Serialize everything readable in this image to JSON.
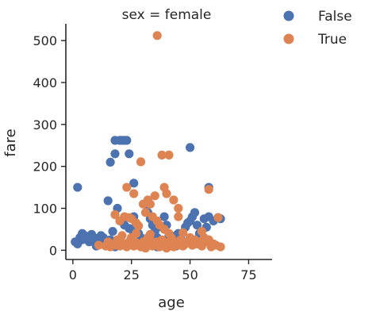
{
  "chart_data": {
    "type": "scatter",
    "title": "sex = female",
    "xlabel": "age",
    "ylabel": "fare",
    "xlim": [
      -3,
      85
    ],
    "ylim": [
      -22,
      540
    ],
    "xticks": [
      "0",
      "25",
      "50",
      "75"
    ],
    "xtick_values": [
      0,
      25,
      50,
      75
    ],
    "yticks": [
      "0",
      "100",
      "200",
      "300",
      "400",
      "500"
    ],
    "ytick_values": [
      0,
      100,
      200,
      300,
      400,
      500
    ],
    "grid": false,
    "legend_position": "top-right",
    "series": [
      {
        "name": "False",
        "color": "#4c72b0",
        "points": [
          [
            2,
            150
          ],
          [
            1,
            20
          ],
          [
            2,
            15
          ],
          [
            3,
            30
          ],
          [
            4,
            40
          ],
          [
            4,
            25
          ],
          [
            5,
            35
          ],
          [
            6,
            28
          ],
          [
            7,
            20
          ],
          [
            8,
            38
          ],
          [
            9,
            30
          ],
          [
            10,
            25
          ],
          [
            11,
            20
          ],
          [
            12,
            35
          ],
          [
            13,
            30
          ],
          [
            14,
            20
          ],
          [
            15,
            118
          ],
          [
            16,
            25
          ],
          [
            16,
            210
          ],
          [
            17,
            45
          ],
          [
            18,
            230
          ],
          [
            18,
            262
          ],
          [
            19,
            100
          ],
          [
            20,
            262
          ],
          [
            21,
            262
          ],
          [
            22,
            262
          ],
          [
            23,
            262
          ],
          [
            24,
            230
          ],
          [
            24,
            52
          ],
          [
            25,
            30
          ],
          [
            26,
            160
          ],
          [
            26,
            80
          ],
          [
            27,
            60
          ],
          [
            28,
            40
          ],
          [
            29,
            30
          ],
          [
            30,
            25
          ],
          [
            31,
            110
          ],
          [
            32,
            90
          ],
          [
            33,
            75
          ],
          [
            34,
            60
          ],
          [
            35,
            45
          ],
          [
            36,
            30
          ],
          [
            37,
            20
          ],
          [
            38,
            55
          ],
          [
            39,
            80
          ],
          [
            40,
            60
          ],
          [
            41,
            35
          ],
          [
            42,
            25
          ],
          [
            43,
            15
          ],
          [
            44,
            10
          ],
          [
            45,
            40
          ],
          [
            46,
            30
          ],
          [
            47,
            20
          ],
          [
            48,
            55
          ],
          [
            49,
            65
          ],
          [
            50,
            245
          ],
          [
            50,
            70
          ],
          [
            51,
            80
          ],
          [
            52,
            90
          ],
          [
            53,
            60
          ],
          [
            54,
            40
          ],
          [
            55,
            30
          ],
          [
            56,
            75
          ],
          [
            57,
            55
          ],
          [
            58,
            150
          ],
          [
            58,
            80
          ],
          [
            60,
            70
          ],
          [
            62,
            78
          ],
          [
            63,
            75
          ],
          [
            30,
            10
          ],
          [
            20,
            12
          ],
          [
            10,
            10
          ],
          [
            40,
            12
          ],
          [
            22,
            60
          ],
          [
            26,
            40
          ],
          [
            33,
            15
          ],
          [
            44,
            35
          ],
          [
            18,
            8
          ],
          [
            24,
            14
          ],
          [
            36,
            8
          ]
        ]
      },
      {
        "name": "True",
        "color": "#dd8452",
        "points": [
          [
            36,
            512
          ],
          [
            29,
            211
          ],
          [
            23,
            150
          ],
          [
            26,
            135
          ],
          [
            32,
            120
          ],
          [
            33,
            110
          ],
          [
            35,
            130
          ],
          [
            38,
            227
          ],
          [
            41,
            227
          ],
          [
            39,
            150
          ],
          [
            40,
            135
          ],
          [
            43,
            120
          ],
          [
            45,
            100
          ],
          [
            58,
            145
          ],
          [
            18,
            85
          ],
          [
            20,
            70
          ],
          [
            22,
            80
          ],
          [
            24,
            78
          ],
          [
            25,
            75
          ],
          [
            27,
            65
          ],
          [
            28,
            58
          ],
          [
            30,
            110
          ],
          [
            31,
            90
          ],
          [
            34,
            80
          ],
          [
            36,
            70
          ],
          [
            37,
            60
          ],
          [
            39,
            50
          ],
          [
            41,
            40
          ],
          [
            42,
            30
          ],
          [
            44,
            20
          ],
          [
            46,
            25
          ],
          [
            48,
            15
          ],
          [
            50,
            30
          ],
          [
            52,
            25
          ],
          [
            54,
            20
          ],
          [
            56,
            30
          ],
          [
            58,
            25
          ],
          [
            60,
            15
          ],
          [
            62,
            78
          ],
          [
            63,
            8
          ],
          [
            14,
            10
          ],
          [
            15,
            20
          ],
          [
            16,
            8
          ],
          [
            17,
            15
          ],
          [
            18,
            12
          ],
          [
            19,
            25
          ],
          [
            20,
            10
          ],
          [
            21,
            18
          ],
          [
            22,
            12
          ],
          [
            23,
            8
          ],
          [
            24,
            20
          ],
          [
            25,
            30
          ],
          [
            26,
            10
          ],
          [
            27,
            18
          ],
          [
            28,
            12
          ],
          [
            29,
            8
          ],
          [
            30,
            20
          ],
          [
            31,
            15
          ],
          [
            32,
            30
          ],
          [
            33,
            25
          ],
          [
            34,
            10
          ],
          [
            35,
            15
          ],
          [
            36,
            20
          ],
          [
            37,
            8
          ],
          [
            38,
            25
          ],
          [
            39,
            12
          ],
          [
            40,
            18
          ],
          [
            41,
            10
          ],
          [
            42,
            15
          ],
          [
            43,
            8
          ],
          [
            45,
            12
          ],
          [
            47,
            10
          ],
          [
            49,
            20
          ],
          [
            51,
            12
          ],
          [
            53,
            15
          ],
          [
            55,
            10
          ],
          [
            57,
            20
          ],
          [
            59,
            8
          ],
          [
            61,
            12
          ],
          [
            21,
            35
          ],
          [
            27,
            40
          ],
          [
            33,
            38
          ],
          [
            47,
            42
          ],
          [
            55,
            45
          ],
          [
            45,
            80
          ],
          [
            11,
            12
          ],
          [
            31,
            5
          ],
          [
            40,
            5
          ]
        ]
      }
    ]
  }
}
